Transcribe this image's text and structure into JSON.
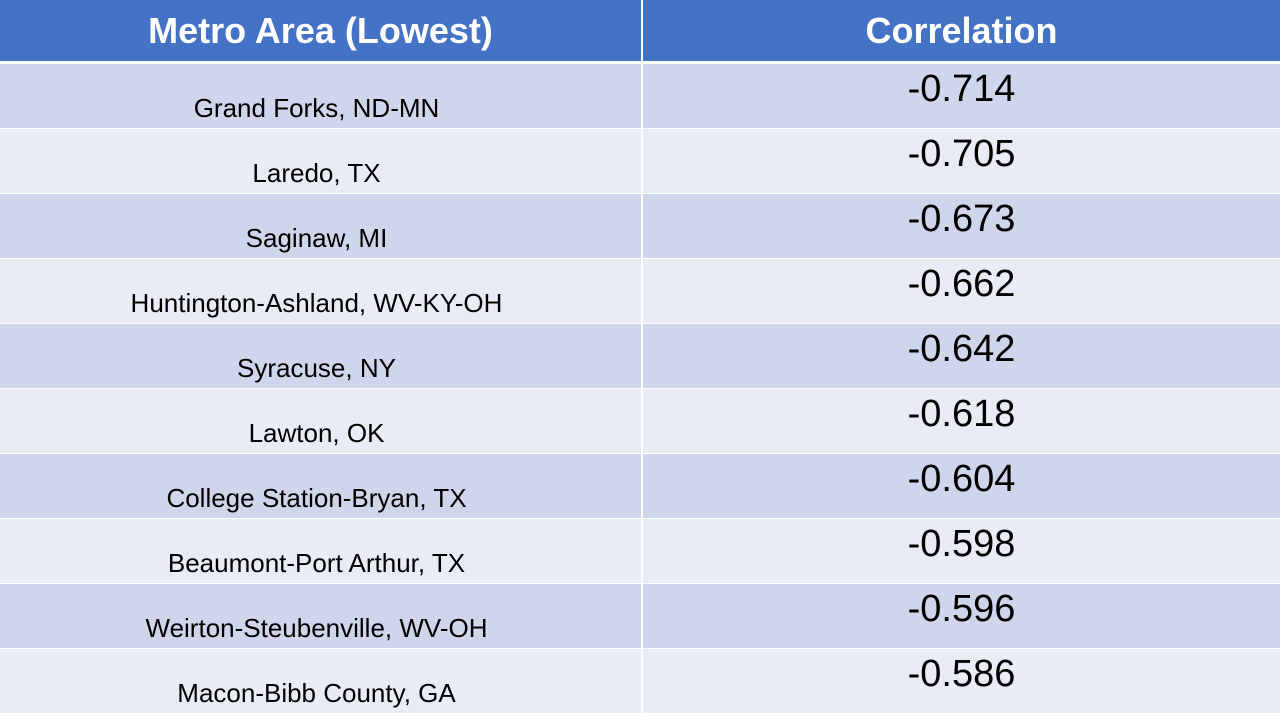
{
  "table": {
    "headers": [
      "Metro Area (Lowest)",
      "Correlation"
    ],
    "header_color": "#4472c4",
    "row_colors": [
      "#cfd5ea",
      "#e9ebf5"
    ]
  },
  "chart_data": {
    "type": "table",
    "columns": [
      "Metro Area (Lowest)",
      "Correlation"
    ],
    "rows": [
      [
        "Grand Forks, ND-MN",
        "-0.714"
      ],
      [
        "Laredo, TX",
        "-0.705"
      ],
      [
        "Saginaw, MI",
        "-0.673"
      ],
      [
        "Huntington-Ashland, WV-KY-OH",
        "-0.662"
      ],
      [
        "Syracuse, NY",
        "-0.642"
      ],
      [
        "Lawton, OK",
        "-0.618"
      ],
      [
        "College Station-Bryan, TX",
        "-0.604"
      ],
      [
        "Beaumont-Port Arthur, TX",
        "-0.598"
      ],
      [
        "Weirton-Steubenville, WV-OH",
        "-0.596"
      ],
      [
        "Macon-Bibb County, GA",
        "-0.586"
      ]
    ]
  }
}
